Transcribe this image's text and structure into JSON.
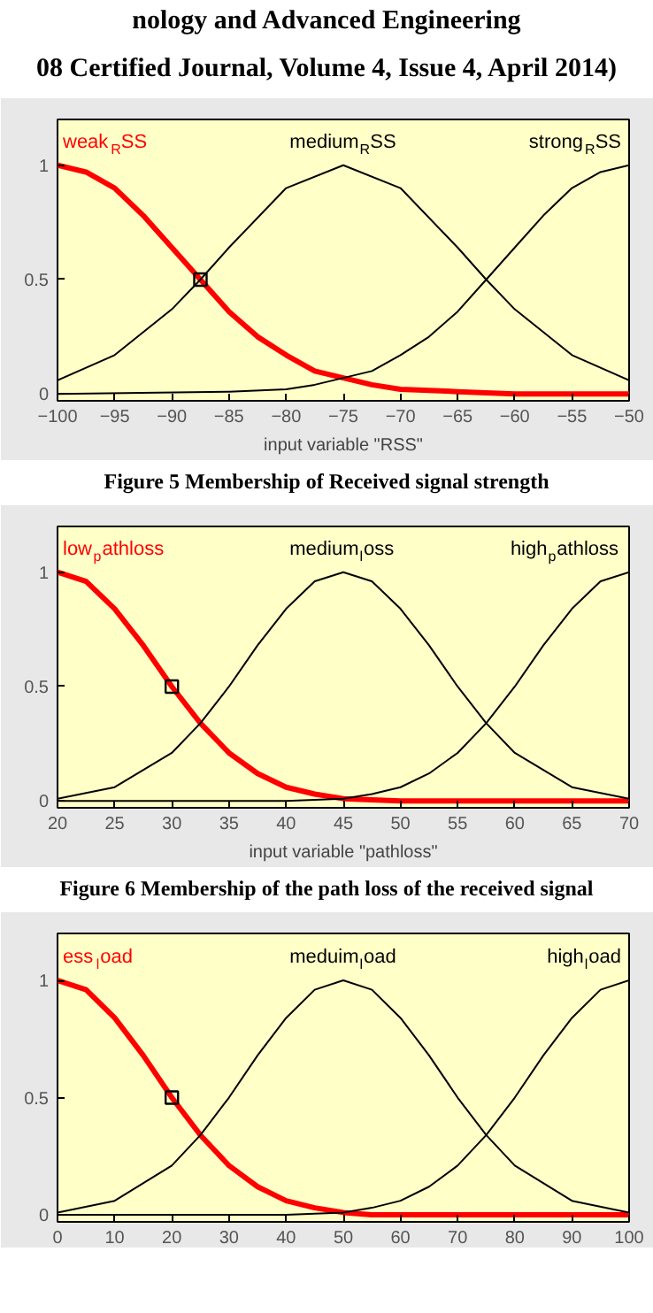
{
  "chart_data": [
    {
      "type": "line",
      "xlabel": "input variable \"RSS\"",
      "annotations": [
        "nology and Advanced Engineering",
        "08 Certified Journal, Volume 4, Issue 4, April 2014)",
        "Figure 5 Membership of Received signal strength"
      ],
      "xlim": [
        -100,
        -50
      ],
      "xticks": [
        -100,
        -95,
        -90,
        -85,
        -80,
        -75,
        -70,
        -65,
        -60,
        -55,
        -50
      ],
      "ylim": [
        -0.03,
        1.2
      ],
      "yticks": [
        0,
        0.5,
        1
      ],
      "grid": false,
      "series": [
        {
          "name": "weak$_{R}$SS",
          "color": "#ff0000",
          "x": [
            -100,
            -97.5,
            -95,
            -92.5,
            -90,
            -87.5,
            -85,
            -82.5,
            -80,
            -77.5,
            -75,
            -72.5,
            -70,
            -65,
            -60,
            -50
          ],
          "values": [
            1,
            0.97,
            0.9,
            0.78,
            0.64,
            0.5,
            0.36,
            0.25,
            0.17,
            0.1,
            0.07,
            0.04,
            0.02,
            0.01,
            0,
            0
          ]
        },
        {
          "name": "medium$_{R}$SS",
          "color": "#000000",
          "x": [
            -100,
            -95,
            -90,
            -87.5,
            -85,
            -80,
            -75,
            -70,
            -65,
            -62.5,
            -60,
            -55,
            -50
          ],
          "values": [
            0.06,
            0.17,
            0.37,
            0.5,
            0.64,
            0.9,
            1,
            0.9,
            0.64,
            0.5,
            0.37,
            0.17,
            0.06
          ]
        },
        {
          "name": "strong$_{R}$SS",
          "color": "#000000",
          "x": [
            -100,
            -85,
            -80,
            -77.5,
            -75,
            -72.5,
            -70,
            -67.5,
            -65,
            -62.5,
            -60,
            -57.5,
            -55,
            -52.5,
            -50
          ],
          "values": [
            0,
            0.01,
            0.02,
            0.04,
            0.07,
            0.1,
            0.17,
            0.25,
            0.36,
            0.5,
            0.64,
            0.78,
            0.9,
            0.97,
            1
          ]
        },
        {
          "type": "scatter",
          "marker": "square",
          "color": "#000000",
          "x": [
            -87.5
          ],
          "values": [
            0.5
          ]
        }
      ]
    },
    {
      "type": "line",
      "xlabel": "input variable \"pathloss\"",
      "annotations": [
        "Figure 6 Membership of the path loss of the received signal"
      ],
      "xlim": [
        20,
        70
      ],
      "xticks": [
        20,
        25,
        30,
        35,
        40,
        45,
        50,
        55,
        60,
        65,
        70
      ],
      "ylim": [
        -0.03,
        1.2
      ],
      "yticks": [
        0,
        0.5,
        1
      ],
      "grid": false,
      "series": [
        {
          "name": "low$_{p}$athloss",
          "color": "#ff0000",
          "x": [
            20,
            22.5,
            25,
            27.5,
            30,
            32.5,
            35,
            37.5,
            40,
            42.5,
            45,
            50,
            70
          ],
          "values": [
            1,
            0.96,
            0.84,
            0.68,
            0.5,
            0.34,
            0.21,
            0.12,
            0.06,
            0.03,
            0.01,
            0,
            0
          ]
        },
        {
          "name": "medium$_{l}$oss",
          "color": "#000000",
          "x": [
            20,
            25,
            30,
            32.5,
            35,
            37.5,
            40,
            42.5,
            45,
            47.5,
            50,
            52.5,
            55,
            57.5,
            60,
            65,
            70
          ],
          "values": [
            0.01,
            0.06,
            0.21,
            0.34,
            0.5,
            0.68,
            0.84,
            0.96,
            1,
            0.96,
            0.84,
            0.68,
            0.5,
            0.34,
            0.21,
            0.06,
            0.01
          ]
        },
        {
          "name": "high$_{p}$athloss",
          "color": "#000000",
          "x": [
            20,
            40,
            45,
            47.5,
            50,
            52.5,
            55,
            57.5,
            60,
            62.5,
            65,
            67.5,
            70
          ],
          "values": [
            0,
            0,
            0.01,
            0.03,
            0.06,
            0.12,
            0.21,
            0.34,
            0.5,
            0.68,
            0.84,
            0.96,
            1
          ]
        },
        {
          "type": "scatter",
          "marker": "square",
          "color": "#000000",
          "x": [
            30
          ],
          "values": [
            0.5
          ]
        }
      ]
    },
    {
      "type": "line",
      "xlim": [
        0,
        100
      ],
      "xticks": [
        0,
        10,
        20,
        30,
        40,
        50,
        60,
        70,
        80,
        90,
        100
      ],
      "ylim": [
        -0.03,
        1.2
      ],
      "yticks": [
        0,
        0.5,
        1
      ],
      "grid": false,
      "series": [
        {
          "name": "ess$_{l}$oad",
          "color": "#ff0000",
          "x": [
            0,
            5,
            10,
            15,
            20,
            25,
            30,
            35,
            40,
            45,
            50,
            55,
            60,
            100
          ],
          "values": [
            1,
            0.96,
            0.84,
            0.68,
            0.5,
            0.34,
            0.21,
            0.12,
            0.06,
            0.03,
            0.01,
            0,
            0,
            0
          ]
        },
        {
          "name": "meduim$_{l}$oad",
          "color": "#000000",
          "x": [
            0,
            10,
            20,
            25,
            30,
            35,
            40,
            45,
            50,
            55,
            60,
            65,
            70,
            75,
            80,
            90,
            100
          ],
          "values": [
            0.01,
            0.06,
            0.21,
            0.34,
            0.5,
            0.68,
            0.84,
            0.96,
            1,
            0.96,
            0.84,
            0.68,
            0.5,
            0.34,
            0.21,
            0.06,
            0.01
          ]
        },
        {
          "name": "high$_{l}$oad",
          "color": "#000000",
          "x": [
            0,
            40,
            50,
            55,
            60,
            65,
            70,
            75,
            80,
            85,
            90,
            95,
            100
          ],
          "values": [
            0,
            0,
            0.01,
            0.03,
            0.06,
            0.12,
            0.21,
            0.34,
            0.5,
            0.68,
            0.84,
            0.96,
            1
          ]
        },
        {
          "type": "scatter",
          "marker": "square",
          "color": "#000000",
          "x": [
            20
          ],
          "values": [
            0.5
          ]
        }
      ]
    }
  ]
}
